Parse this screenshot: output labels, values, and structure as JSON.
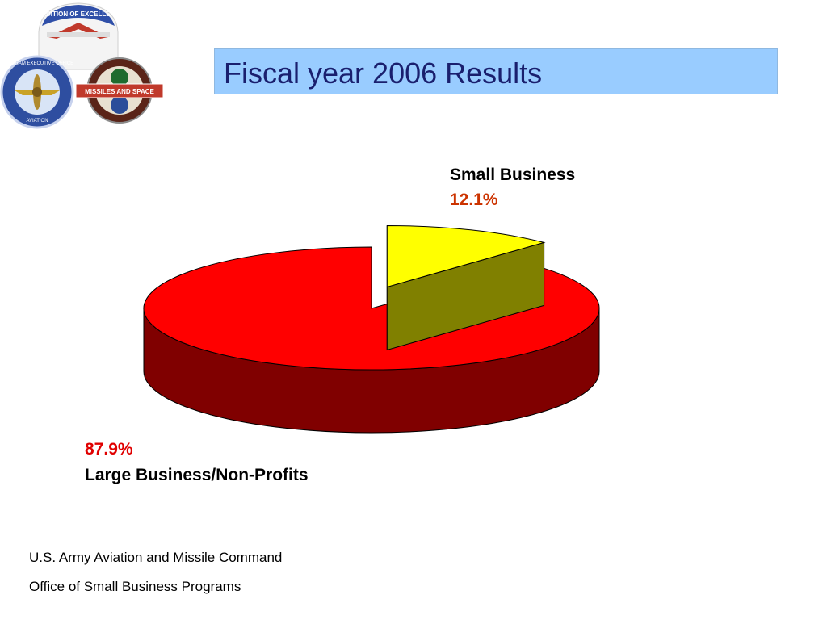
{
  "header": {
    "title": "Fiscal year 2006 Results"
  },
  "logos": [
    {
      "name": "tradition-of-excellence-emblem",
      "text": "TRADITION OF EXCELLENCE"
    },
    {
      "name": "peo-aviation-seal",
      "text": "PROGRAM EXECUTIVE OFFICE AVIATION"
    },
    {
      "name": "peo-missiles-space-seal",
      "text": "PROGRAM EXECUTIVE OFFICE MISSILES AND SPACE"
    }
  ],
  "chart_data": {
    "type": "pie",
    "title": "",
    "three_d": true,
    "slices": [
      {
        "label": "Small Business",
        "value": 12.1,
        "value_label": "12.1%",
        "color": "#ffff00",
        "side_color": "#808000",
        "exploded": true
      },
      {
        "label": "Large Business/Non-Profits",
        "value": 87.9,
        "value_label": "87.9%",
        "color": "#ff0000",
        "side_color": "#800000",
        "exploded": false
      }
    ]
  },
  "footer": {
    "line1": "U.S. Army Aviation and Missile Command",
    "line2": "Office of Small Business Programs"
  }
}
